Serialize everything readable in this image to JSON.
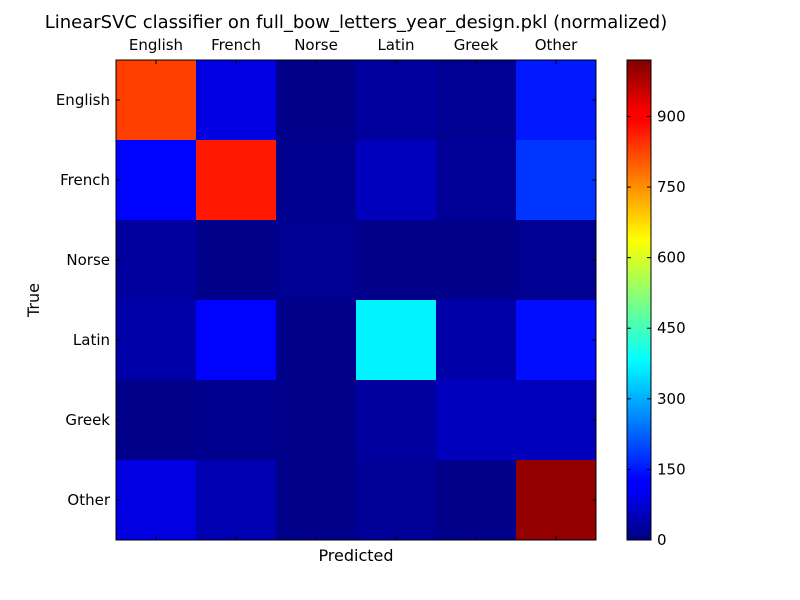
{
  "chart_data": {
    "type": "heatmap",
    "title": "LinearSVC classifier on full_bow_letters_year_design.pkl (normalized)",
    "xlabel": "Predicted",
    "ylabel": "True",
    "x_categories": [
      "English",
      "French",
      "Norse",
      "Latin",
      "Greek",
      "Other"
    ],
    "y_categories": [
      "English",
      "French",
      "Norse",
      "Latin",
      "Greek",
      "Other"
    ],
    "values": [
      [
        830,
        100,
        10,
        30,
        20,
        150
      ],
      [
        130,
        870,
        15,
        60,
        25,
        180
      ],
      [
        30,
        10,
        20,
        10,
        10,
        20
      ],
      [
        40,
        130,
        10,
        370,
        40,
        140
      ],
      [
        10,
        15,
        10,
        30,
        60,
        60
      ],
      [
        100,
        50,
        10,
        25,
        10,
        1000
      ]
    ],
    "colormap": "jet",
    "color_range": [
      0,
      1020
    ],
    "colorbar_ticks": [
      0,
      150,
      300,
      450,
      600,
      750,
      900
    ],
    "grid": false
  }
}
